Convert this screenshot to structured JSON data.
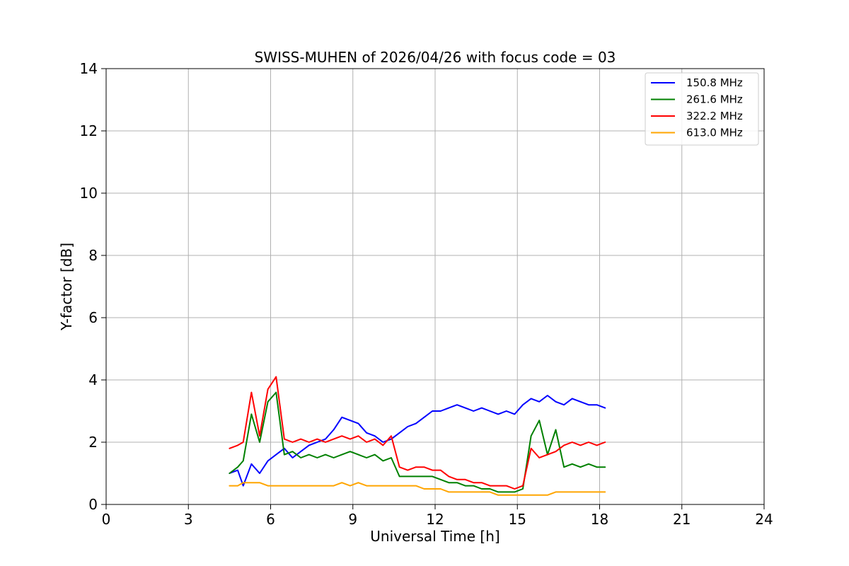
{
  "chart_data": {
    "type": "line",
    "title": "SWISS-MUHEN of 2026/04/26 with focus code = 03",
    "xlabel": "Universal Time [h]",
    "ylabel": "Y-factor [dB]",
    "xlim": [
      0,
      24
    ],
    "ylim": [
      0,
      14
    ],
    "xticks": [
      0,
      3,
      6,
      9,
      12,
      15,
      18,
      21,
      24
    ],
    "yticks": [
      0,
      2,
      4,
      6,
      8,
      10,
      12,
      14
    ],
    "grid": true,
    "legend_position": "top-right",
    "series": [
      {
        "name": "150.8 MHz",
        "color": "#0000ff",
        "x": [
          4.5,
          4.8,
          5.0,
          5.3,
          5.6,
          5.9,
          6.2,
          6.5,
          6.8,
          7.1,
          7.4,
          7.7,
          8.0,
          8.3,
          8.6,
          8.9,
          9.2,
          9.5,
          9.8,
          10.1,
          10.4,
          10.7,
          11.0,
          11.3,
          11.6,
          11.9,
          12.2,
          12.5,
          12.8,
          13.1,
          13.4,
          13.7,
          14.0,
          14.3,
          14.6,
          14.9,
          15.2,
          15.5,
          15.8,
          16.1,
          16.4,
          16.7,
          17.0,
          17.3,
          17.6,
          17.9,
          18.2
        ],
        "y": [
          1.0,
          1.1,
          0.6,
          1.3,
          1.0,
          1.4,
          1.6,
          1.8,
          1.5,
          1.7,
          1.9,
          2.0,
          2.1,
          2.4,
          2.8,
          2.7,
          2.6,
          2.3,
          2.2,
          2.0,
          2.1,
          2.3,
          2.5,
          2.6,
          2.8,
          3.0,
          3.0,
          3.1,
          3.2,
          3.1,
          3.0,
          3.1,
          3.0,
          2.9,
          3.0,
          2.9,
          3.2,
          3.4,
          3.3,
          3.5,
          3.3,
          3.2,
          3.4,
          3.3,
          3.2,
          3.2,
          3.1
        ]
      },
      {
        "name": "261.6 MHz",
        "color": "#008000",
        "x": [
          4.5,
          4.8,
          5.0,
          5.3,
          5.6,
          5.9,
          6.2,
          6.5,
          6.8,
          7.1,
          7.4,
          7.7,
          8.0,
          8.3,
          8.6,
          8.9,
          9.2,
          9.5,
          9.8,
          10.1,
          10.4,
          10.7,
          11.0,
          11.3,
          11.6,
          11.9,
          12.2,
          12.5,
          12.8,
          13.1,
          13.4,
          13.7,
          14.0,
          14.3,
          14.6,
          14.9,
          15.2,
          15.5,
          15.8,
          16.1,
          16.4,
          16.7,
          17.0,
          17.3,
          17.6,
          17.9,
          18.2
        ],
        "y": [
          1.0,
          1.2,
          1.4,
          2.9,
          2.0,
          3.3,
          3.6,
          1.6,
          1.7,
          1.5,
          1.6,
          1.5,
          1.6,
          1.5,
          1.6,
          1.7,
          1.6,
          1.5,
          1.6,
          1.4,
          1.5,
          0.9,
          0.9,
          0.9,
          0.9,
          0.9,
          0.8,
          0.7,
          0.7,
          0.6,
          0.6,
          0.5,
          0.5,
          0.4,
          0.4,
          0.4,
          0.5,
          2.2,
          2.7,
          1.6,
          2.4,
          1.2,
          1.3,
          1.2,
          1.3,
          1.2,
          1.2
        ]
      },
      {
        "name": "322.2 MHz",
        "color": "#ff0000",
        "x": [
          4.5,
          4.8,
          5.0,
          5.3,
          5.6,
          5.9,
          6.2,
          6.5,
          6.8,
          7.1,
          7.4,
          7.7,
          8.0,
          8.3,
          8.6,
          8.9,
          9.2,
          9.5,
          9.8,
          10.1,
          10.4,
          10.7,
          11.0,
          11.3,
          11.6,
          11.9,
          12.2,
          12.5,
          12.8,
          13.1,
          13.4,
          13.7,
          14.0,
          14.3,
          14.6,
          14.9,
          15.2,
          15.5,
          15.8,
          16.1,
          16.4,
          16.7,
          17.0,
          17.3,
          17.6,
          17.9,
          18.2
        ],
        "y": [
          1.8,
          1.9,
          2.0,
          3.6,
          2.2,
          3.7,
          4.1,
          2.1,
          2.0,
          2.1,
          2.0,
          2.1,
          2.0,
          2.1,
          2.2,
          2.1,
          2.2,
          2.0,
          2.1,
          1.9,
          2.2,
          1.2,
          1.1,
          1.2,
          1.2,
          1.1,
          1.1,
          0.9,
          0.8,
          0.8,
          0.7,
          0.7,
          0.6,
          0.6,
          0.6,
          0.5,
          0.6,
          1.8,
          1.5,
          1.6,
          1.7,
          1.9,
          2.0,
          1.9,
          2.0,
          1.9,
          2.0
        ]
      },
      {
        "name": "613.0 MHz",
        "color": "#ffa500",
        "x": [
          4.5,
          4.8,
          5.0,
          5.3,
          5.6,
          5.9,
          6.2,
          6.5,
          6.8,
          7.1,
          7.4,
          7.7,
          8.0,
          8.3,
          8.6,
          8.9,
          9.2,
          9.5,
          9.8,
          10.1,
          10.4,
          10.7,
          11.0,
          11.3,
          11.6,
          11.9,
          12.2,
          12.5,
          12.8,
          13.1,
          13.4,
          13.7,
          14.0,
          14.3,
          14.6,
          14.9,
          15.2,
          15.5,
          15.8,
          16.1,
          16.4,
          16.7,
          17.0,
          17.3,
          17.6,
          17.9,
          18.2
        ],
        "y": [
          0.6,
          0.6,
          0.7,
          0.7,
          0.7,
          0.6,
          0.6,
          0.6,
          0.6,
          0.6,
          0.6,
          0.6,
          0.6,
          0.6,
          0.7,
          0.6,
          0.7,
          0.6,
          0.6,
          0.6,
          0.6,
          0.6,
          0.6,
          0.6,
          0.5,
          0.5,
          0.5,
          0.4,
          0.4,
          0.4,
          0.4,
          0.4,
          0.4,
          0.3,
          0.3,
          0.3,
          0.3,
          0.3,
          0.3,
          0.3,
          0.4,
          0.4,
          0.4,
          0.4,
          0.4,
          0.4,
          0.4
        ]
      }
    ]
  }
}
